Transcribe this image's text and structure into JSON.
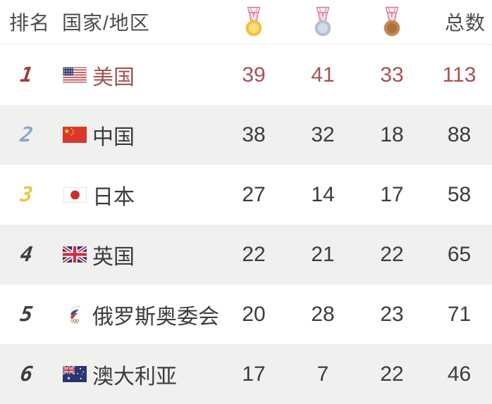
{
  "table": {
    "headers": {
      "rank": "排名",
      "country": "国家/地区",
      "total": "总数"
    },
    "medal_columns": [
      {
        "icon": "gold-medal-icon",
        "outer": "#f1c23d",
        "inner": "#f8dd7d"
      },
      {
        "icon": "silver-medal-icon",
        "outer": "#b2c1d4",
        "inner": "#d2dce7"
      },
      {
        "icon": "bronze-medal-icon",
        "outer": "#c18a58",
        "inner": "#ad713d"
      }
    ],
    "ribbon_colors": {
      "band": "#f0bcca",
      "edge": "#d8758f",
      "bar": "#f8eef1"
    },
    "rows": [
      {
        "rank": "1",
        "rank_color": "#a43b3c",
        "flag_icon": "usa-flag",
        "country": "美国",
        "gold": "39",
        "silver": "41",
        "bronze": "33",
        "total": "113",
        "text_color": "#a65252"
      },
      {
        "rank": "2",
        "rank_color": "#8ca6c9",
        "flag_icon": "china-flag",
        "country": "中国",
        "gold": "38",
        "silver": "32",
        "bronze": "18",
        "total": "88",
        "text_color": "#3a3c3e"
      },
      {
        "rank": "3",
        "rank_color": "#e9c64c",
        "flag_icon": "japan-flag",
        "country": "日本",
        "gold": "27",
        "silver": "14",
        "bronze": "17",
        "total": "58",
        "text_color": "#3a3c3e"
      },
      {
        "rank": "4",
        "rank_color": "#3c3f42",
        "flag_icon": "uk-flag",
        "country": "英国",
        "gold": "22",
        "silver": "21",
        "bronze": "22",
        "total": "65",
        "text_color": "#3a3c3e"
      },
      {
        "rank": "5",
        "rank_color": "#3c3f42",
        "flag_icon": "roc-flag",
        "country": "俄罗斯奥委会",
        "gold": "20",
        "silver": "28",
        "bronze": "23",
        "total": "71",
        "text_color": "#3a3c3e"
      },
      {
        "rank": "6",
        "rank_color": "#3c3f42",
        "flag_icon": "australia-flag",
        "country": "澳大利亚",
        "gold": "17",
        "silver": "7",
        "bronze": "22",
        "total": "46",
        "text_color": "#3a3c3e"
      }
    ],
    "colors": {
      "header_text": "#4c4c4c",
      "row_text": "#3a3c3e",
      "highlight_text": "#a65252",
      "alt_row_bg": "#f0f0ef",
      "row_bg": "#ffffff"
    }
  }
}
